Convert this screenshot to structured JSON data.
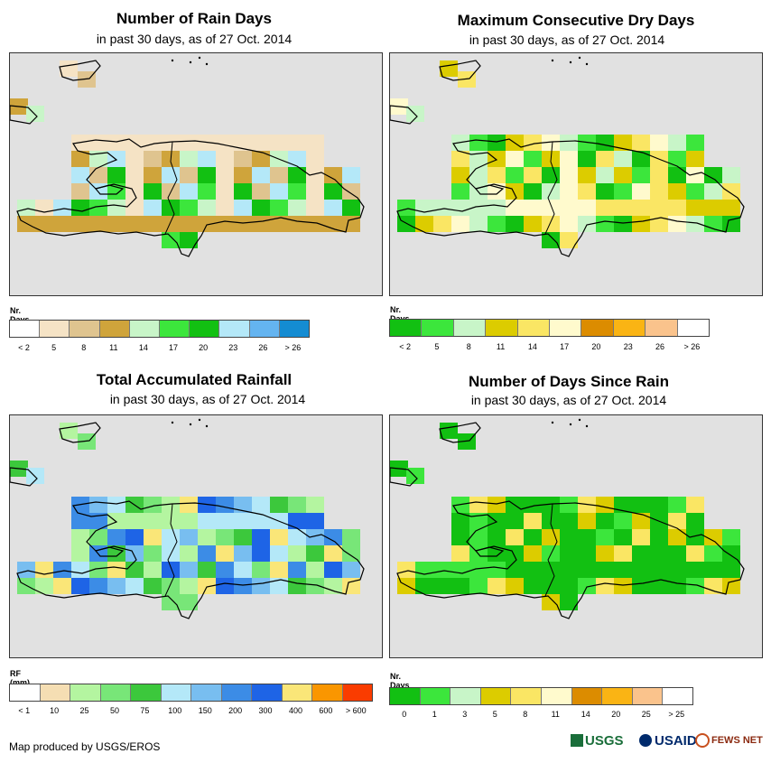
{
  "panels": [
    {
      "id": "rain-days",
      "title": "Number of Rain Days",
      "subtitle": "in past 30 days, as of 27 Oct. 2014",
      "legend_title": "Nr. Days",
      "legend_colors": [
        "#ffffff",
        "#f5e3c5",
        "#dfc48f",
        "#cfa43b",
        "#c8f5c8",
        "#3ce63c",
        "#12c012",
        "#b4e8f8",
        "#64b4f0",
        "#148cd2"
      ],
      "legend_labels": [
        "< 2",
        "5",
        "8",
        "11",
        "14",
        "17",
        "20",
        "23",
        "26",
        "> 26"
      ],
      "palette": [
        "#f5e3c5",
        "#dfc48f",
        "#cfa43b",
        "#c8f5c8",
        "#3ce63c",
        "#12c012",
        "#b4e8f8"
      ]
    },
    {
      "id": "dry-days",
      "title": "Maximum Consecutive Dry Days",
      "subtitle": "in past 30 days, as of 27 Oct. 2014",
      "legend_title": "Nr. Days",
      "legend_colors": [
        "#12c012",
        "#3ce63c",
        "#c8f5c8",
        "#dccc00",
        "#fae664",
        "#fffacd",
        "#dc8c00",
        "#fab414",
        "#fac38c",
        "#ffffff"
      ],
      "legend_labels": [
        "< 2",
        "5",
        "8",
        "11",
        "14",
        "17",
        "20",
        "23",
        "26",
        "> 26"
      ],
      "palette": [
        "#dccc00",
        "#fae664",
        "#fffacd",
        "#c8f5c8",
        "#3ce63c",
        "#12c012"
      ]
    },
    {
      "id": "rainfall",
      "title": "Total Accumulated Rainfall",
      "subtitle": "in past 30 days, as of 27 Oct. 2014",
      "legend_title": "RF (mm)",
      "legend_colors": [
        "#ffffff",
        "#f5deb3",
        "#b4f5a0",
        "#78e678",
        "#3cc83c",
        "#b4e8f8",
        "#78bef0",
        "#3c8ce6",
        "#1e64e6",
        "#fae678",
        "#fa9600",
        "#fa3c00"
      ],
      "legend_labels": [
        "< 1",
        "10",
        "25",
        "50",
        "75",
        "100",
        "150",
        "200",
        "300",
        "400",
        "600",
        "> 600"
      ],
      "palette": [
        "#b4f5a0",
        "#78e678",
        "#3cc83c",
        "#b4e8f8",
        "#78bef0",
        "#3c8ce6",
        "#1e64e6",
        "#fae678"
      ]
    },
    {
      "id": "days-since-rain",
      "title": "Number of Days Since Rain",
      "subtitle": "in past 30 days, as of 27 Oct. 2014",
      "legend_title": "Nr. Days",
      "legend_colors": [
        "#12c012",
        "#3ce63c",
        "#c8f5c8",
        "#dccc00",
        "#fae664",
        "#fffacd",
        "#dc8c00",
        "#fab414",
        "#fac38c",
        "#ffffff"
      ],
      "legend_labels": [
        "0",
        "1",
        "3",
        "5",
        "8",
        "11",
        "14",
        "20",
        "25",
        "> 25"
      ],
      "palette": [
        "#12c012",
        "#12c012",
        "#12c012",
        "#3ce63c",
        "#fae664",
        "#dccc00"
      ]
    }
  ],
  "credit": "Map produced by USGS/EROS",
  "logos": {
    "usgs": "USGS",
    "usaid": "USAID",
    "fews": "FEWS NET"
  }
}
